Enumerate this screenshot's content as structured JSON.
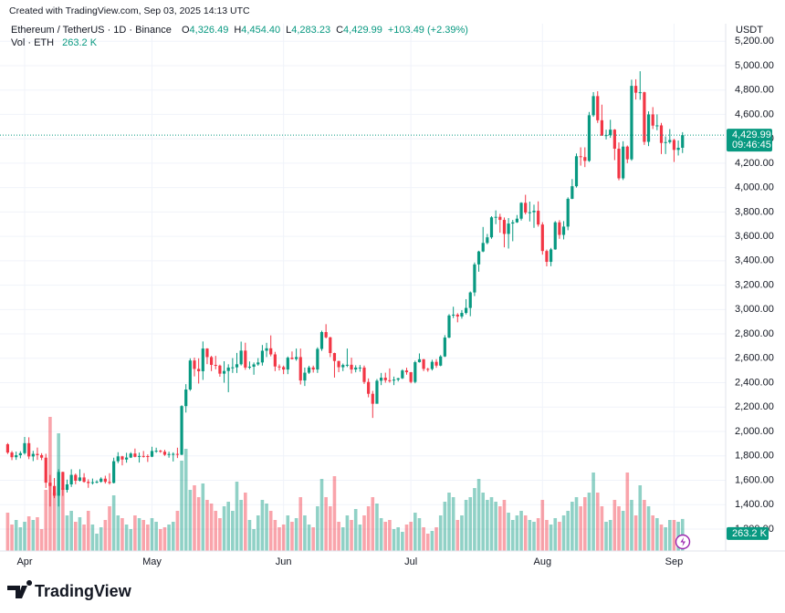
{
  "watermark": "Created with TradingView.com, Sep 03, 2025 14:13 UTC",
  "footer": {
    "brand": "TradingView"
  },
  "chart_data": {
    "type": "candlestick",
    "symbol": "Ethereum / TetherUS · 1D · Binance",
    "ohlc_legend": [
      {
        "key": "O",
        "value": "4,326.49"
      },
      {
        "key": "H",
        "value": "4,454.40"
      },
      {
        "key": "L",
        "value": "4,283.23"
      },
      {
        "key": "C",
        "value": "4,429.99"
      }
    ],
    "change": "+103.49 (+2.39%)",
    "volume_legend": {
      "name": "Vol · ETH",
      "value": "263.2 K"
    },
    "currency": "USDT",
    "last_price_label": "4,429.99",
    "countdown": "09:46:45",
    "categories": [
      null,
      null,
      null,
      null,
      "Apr",
      null,
      null,
      null,
      null,
      null,
      null,
      null,
      null,
      null,
      null,
      null,
      null,
      null,
      null,
      null,
      null,
      null,
      null,
      null,
      null,
      null,
      null,
      null,
      null,
      null,
      null,
      null,
      null,
      null,
      "May",
      null,
      null,
      null,
      null,
      null,
      null,
      null,
      null,
      null,
      null,
      null,
      null,
      null,
      null,
      null,
      null,
      null,
      null,
      null,
      null,
      null,
      null,
      null,
      null,
      null,
      null,
      null,
      null,
      null,
      null,
      "Jun",
      null,
      null,
      null,
      null,
      null,
      null,
      null,
      null,
      null,
      null,
      null,
      null,
      null,
      null,
      null,
      null,
      null,
      null,
      null,
      null,
      null,
      null,
      null,
      null,
      null,
      null,
      null,
      null,
      null,
      "Jul",
      null,
      null,
      null,
      null,
      null,
      null,
      null,
      null,
      null,
      null,
      null,
      null,
      null,
      null,
      null,
      null,
      null,
      null,
      null,
      null,
      null,
      null,
      null,
      null,
      null,
      null,
      null,
      null,
      null,
      null,
      "Aug",
      null,
      null,
      null,
      null,
      null,
      null,
      null,
      null,
      null,
      null,
      null,
      null,
      null,
      null,
      null,
      null,
      null,
      null,
      null,
      null,
      null,
      null,
      null,
      null,
      null,
      null,
      null,
      null,
      null,
      null,
      "Sep",
      null,
      null
    ],
    "open": [
      1895,
      1827,
      1789,
      1805,
      1822,
      1904,
      1795,
      1816,
      1806,
      1785,
      1580,
      1553,
      1473,
      1668,
      1521,
      1566,
      1644,
      1596,
      1623,
      1587,
      1577,
      1584,
      1588,
      1613,
      1587,
      1578,
      1756,
      1796,
      1770,
      1786,
      1819,
      1792,
      1799,
      1798,
      1793,
      1840,
      1842,
      1834,
      1809,
      1815,
      1816,
      1809,
      2208,
      2344,
      2582,
      2513,
      2494,
      2680,
      2610,
      2546,
      2540,
      2474,
      2496,
      2524,
      2526,
      2551,
      2663,
      2524,
      2531,
      2550,
      2566,
      2662,
      2682,
      2632,
      2533,
      2528,
      2508,
      2605,
      2594,
      2610,
      2418,
      2482,
      2525,
      2508,
      2677,
      2815,
      2772,
      2643,
      2578,
      2527,
      2545,
      2547,
      2508,
      2524,
      2524,
      2406,
      2309,
      2227,
      2416,
      2441,
      2420,
      2417,
      2425,
      2436,
      2500,
      2486,
      2406,
      2568,
      2592,
      2513,
      2512,
      2571,
      2540,
      2615,
      2770,
      2951,
      2958,
      2943,
      2972,
      3013,
      3140,
      3370,
      3476,
      3546,
      3592,
      3756,
      3760,
      3735,
      3620,
      3705,
      3715,
      3745,
      3875,
      3795,
      3798,
      3810,
      3697,
      3480,
      3391,
      3493,
      3715,
      3612,
      3680,
      3908,
      4011,
      4257,
      4250,
      4219,
      4593,
      4750,
      4552,
      4426,
      4430,
      4475,
      4319,
      4076,
      4336,
      4232,
      4834,
      4778,
      4782,
      4375,
      4600,
      4508,
      4510,
      4366,
      4373,
      4390,
      4309,
      4326.49
    ],
    "high": [
      1905,
      1840,
      1835,
      1838,
      1955,
      1952,
      1841,
      1868,
      1822,
      1817,
      1644,
      1618,
      1690,
      1670,
      1605,
      1690,
      1655,
      1690,
      1658,
      1608,
      1614,
      1600,
      1624,
      1637,
      1658,
      1785,
      1830,
      1800,
      1825,
      1830,
      1860,
      1827,
      1840,
      1812,
      1875,
      1867,
      1849,
      1850,
      1834,
      1829,
      1867,
      2215,
      2388,
      2600,
      2606,
      2600,
      2738,
      2683,
      2620,
      2620,
      2548,
      2576,
      2551,
      2602,
      2644,
      2737,
      2728,
      2574,
      2566,
      2602,
      2709,
      2727,
      2788,
      2653,
      2550,
      2540,
      2615,
      2656,
      2680,
      2680,
      2524,
      2539,
      2540,
      2690,
      2827,
      2880,
      2776,
      2646,
      2580,
      2557,
      2680,
      2605,
      2543,
      2545,
      2540,
      2435,
      2333,
      2430,
      2480,
      2482,
      2517,
      2450,
      2440,
      2510,
      2523,
      2488,
      2580,
      2640,
      2595,
      2522,
      2588,
      2593,
      2626,
      2790,
      2962,
      3023,
      2970,
      2995,
      3085,
      3148,
      3386,
      3482,
      3677,
      3620,
      3765,
      3813,
      3785,
      3755,
      3750,
      3735,
      3775,
      3880,
      3941,
      3885,
      3860,
      3887,
      3716,
      3492,
      3505,
      3725,
      3733,
      3725,
      3920,
      4070,
      4280,
      4330,
      4330,
      4620,
      4783,
      4790,
      4680,
      4475,
      4556,
      4480,
      4370,
      4380,
      4345,
      4885,
      4888,
      4954,
      4786,
      4625,
      4660,
      4600,
      4530,
      4420,
      4480,
      4400,
      4386,
      4454.4
    ],
    "low": [
      1815,
      1765,
      1767,
      1780,
      1810,
      1773,
      1757,
      1767,
      1765,
      1537,
      1385,
      1453,
      1385,
      1472,
      1500,
      1545,
      1567,
      1590,
      1580,
      1538,
      1565,
      1574,
      1580,
      1573,
      1565,
      1574,
      1740,
      1722,
      1744,
      1782,
      1788,
      1745,
      1786,
      1750,
      1790,
      1825,
      1825,
      1800,
      1785,
      1754,
      1782,
      1806,
      2155,
      2333,
      2452,
      2393,
      2423,
      2552,
      2495,
      2510,
      2449,
      2400,
      2322,
      2480,
      2480,
      2541,
      2506,
      2510,
      2465,
      2539,
      2540,
      2610,
      2616,
      2495,
      2500,
      2470,
      2470,
      2590,
      2580,
      2385,
      2373,
      2472,
      2483,
      2480,
      2661,
      2763,
      2610,
      2442,
      2486,
      2495,
      2528,
      2475,
      2485,
      2490,
      2390,
      2280,
      2111,
      2230,
      2380,
      2400,
      2400,
      2380,
      2410,
      2430,
      2466,
      2395,
      2395,
      2565,
      2495,
      2490,
      2500,
      2522,
      2535,
      2610,
      2765,
      2930,
      2895,
      2925,
      2960,
      2945,
      3110,
      3310,
      3470,
      3535,
      3580,
      3700,
      3630,
      3510,
      3500,
      3560,
      3710,
      3730,
      3780,
      3722,
      3670,
      3680,
      3450,
      3354,
      3355,
      3490,
      3580,
      3575,
      3650,
      3905,
      4000,
      4180,
      4168,
      4210,
      4580,
      4530,
      4424,
      4395,
      4408,
      4225,
      4060,
      4062,
      4200,
      4220,
      4722,
      4720,
      4350,
      4340,
      4480,
      4470,
      4275,
      4275,
      4360,
      4210,
      4263,
      4283.23
    ],
    "close": [
      1827,
      1789,
      1805,
      1822,
      1904,
      1795,
      1816,
      1806,
      1785,
      1580,
      1553,
      1473,
      1668,
      1521,
      1566,
      1644,
      1596,
      1623,
      1587,
      1577,
      1584,
      1588,
      1613,
      1587,
      1578,
      1756,
      1796,
      1770,
      1786,
      1819,
      1792,
      1799,
      1798,
      1793,
      1840,
      1842,
      1834,
      1809,
      1815,
      1816,
      1809,
      2208,
      2344,
      2582,
      2513,
      2494,
      2680,
      2610,
      2546,
      2540,
      2474,
      2496,
      2524,
      2526,
      2551,
      2663,
      2524,
      2531,
      2550,
      2566,
      2662,
      2682,
      2632,
      2533,
      2528,
      2508,
      2605,
      2594,
      2610,
      2418,
      2482,
      2525,
      2508,
      2677,
      2815,
      2772,
      2643,
      2578,
      2527,
      2545,
      2547,
      2508,
      2524,
      2524,
      2406,
      2309,
      2227,
      2416,
      2441,
      2420,
      2417,
      2425,
      2436,
      2500,
      2486,
      2406,
      2568,
      2592,
      2513,
      2512,
      2571,
      2540,
      2615,
      2770,
      2951,
      2958,
      2943,
      2972,
      3013,
      3140,
      3370,
      3476,
      3546,
      3592,
      3756,
      3760,
      3735,
      3620,
      3705,
      3715,
      3745,
      3875,
      3795,
      3798,
      3810,
      3697,
      3480,
      3391,
      3493,
      3715,
      3612,
      3680,
      3908,
      4011,
      4257,
      4250,
      4219,
      4593,
      4750,
      4552,
      4426,
      4430,
      4475,
      4319,
      4076,
      4336,
      4232,
      4834,
      4778,
      4782,
      4375,
      4600,
      4508,
      4510,
      4366,
      4373,
      4390,
      4309,
      4326.49,
      4429.99
    ],
    "volume": [
      315,
      217.5,
      255,
      195,
      240,
      285,
      255,
      277.5,
      180,
      502.5,
      1102.5,
      480,
      967.5,
      517.5,
      292.5,
      330,
      240,
      277.5,
      217.5,
      330,
      217.5,
      142.5,
      195,
      255,
      367.5,
      457.5,
      292.5,
      270,
      217.5,
      180,
      292.5,
      270,
      255,
      217.5,
      270,
      240,
      180,
      195,
      217.5,
      240,
      330,
      742.5,
      840,
      502.5,
      540,
      442.5,
      555,
      420,
      390,
      330,
      270,
      367.5,
      405,
      330,
      570,
      420,
      480,
      255,
      180,
      292.5,
      420,
      390,
      330,
      255,
      195,
      217.5,
      292.5,
      240,
      270,
      442.5,
      292.5,
      217.5,
      195,
      367.5,
      592.5,
      442.5,
      367.5,
      615,
      240,
      195,
      292.5,
      255,
      345,
      217.5,
      292.5,
      367.5,
      442.5,
      390,
      270,
      240,
      255,
      180,
      195,
      157.5,
      217.5,
      240,
      315,
      270,
      195,
      142.5,
      165,
      195,
      292.5,
      405,
      480,
      442.5,
      255,
      292.5,
      420,
      442.5,
      517.5,
      592.5,
      480,
      420,
      442.5,
      405,
      367.5,
      420,
      315,
      255,
      292.5,
      330,
      292.5,
      255,
      240,
      270,
      420,
      255,
      217.5,
      270,
      240,
      292.5,
      330,
      405,
      442.5,
      367.5,
      442.5,
      480,
      645,
      480,
      367.5,
      240,
      255,
      420,
      367.5,
      330,
      645,
      420,
      292.5,
      540,
      420,
      367.5,
      292.5,
      270,
      217.5,
      195,
      255,
      255,
      240,
      263.2
    ],
    "colors": {
      "up": "#089981",
      "down": "#f23645"
    },
    "ylim": [
      1020,
      5254
    ],
    "yticks": [
      {
        "value": 1200,
        "label": "1,200.00"
      },
      {
        "value": 1400,
        "label": "1,400.00"
      },
      {
        "value": 1600,
        "label": "1,600.00"
      },
      {
        "value": 1800,
        "label": "1,800.00"
      },
      {
        "value": 2000,
        "label": "2,000.00"
      },
      {
        "value": 2200,
        "label": "2,200.00"
      },
      {
        "value": 2400,
        "label": "2,400.00"
      },
      {
        "value": 2600,
        "label": "2,600.00"
      },
      {
        "value": 2800,
        "label": "2,800.00"
      },
      {
        "value": 3000,
        "label": "3,000.00"
      },
      {
        "value": 3200,
        "label": "3,200.00"
      },
      {
        "value": 3400,
        "label": "3,400.00"
      },
      {
        "value": 3600,
        "label": "3,600.00"
      },
      {
        "value": 3800,
        "label": "3,800.00"
      },
      {
        "value": 4000,
        "label": "4,000.00"
      },
      {
        "value": 4200,
        "label": "4,200.00"
      },
      {
        "value": 4400,
        "label": "4,400.00"
      },
      {
        "value": 4600,
        "label": "4,600.00"
      },
      {
        "value": 4800,
        "label": "4,800.00"
      },
      {
        "value": 5000,
        "label": "5,000.00"
      },
      {
        "value": 5200,
        "label": "5,200.00"
      }
    ],
    "grid": true
  }
}
